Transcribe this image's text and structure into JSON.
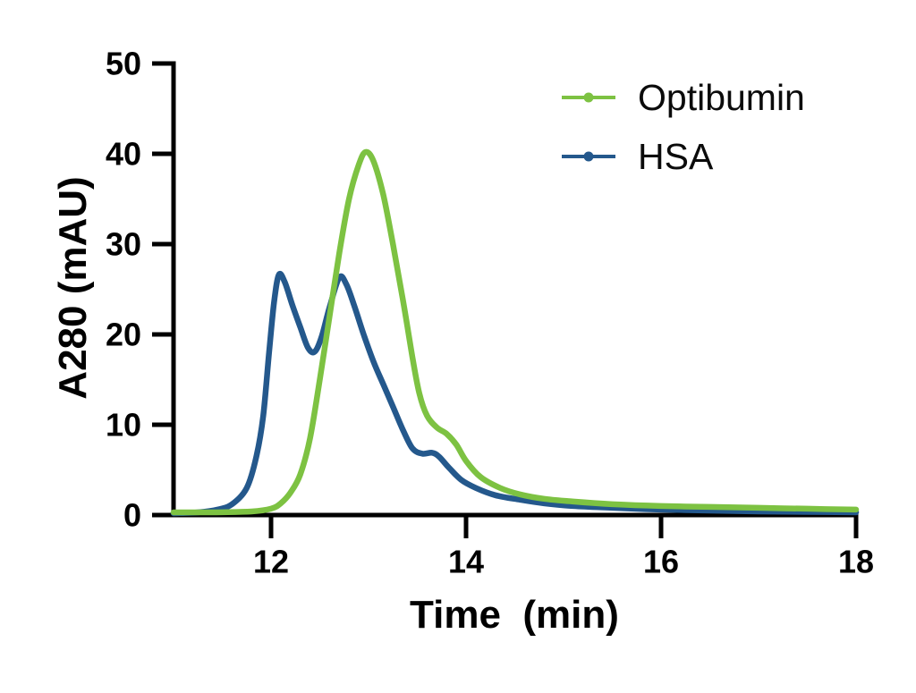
{
  "figure": {
    "background": "#ffffff"
  },
  "chart_data": {
    "type": "line",
    "title": "",
    "xlabel": "Time  (min)",
    "ylabel": "A280 (mAU)",
    "xlim": [
      11,
      18
    ],
    "ylim": [
      0,
      50
    ],
    "x_ticks": [
      12,
      14,
      16,
      18
    ],
    "y_ticks": [
      0,
      10,
      20,
      30,
      40,
      50
    ],
    "grid": false,
    "axis_color": "#000000",
    "legend_position": "top-right",
    "series": [
      {
        "name": "Optibumin",
        "color": "#7dc242",
        "marker": "dot",
        "peak_summary": "single main peak ~40.2 mAU at 12.97 min with shoulder ~9.5 mAU at 13.7 min",
        "points": [
          [
            11.0,
            0.3
          ],
          [
            11.4,
            0.3
          ],
          [
            11.8,
            0.4
          ],
          [
            12.0,
            0.7
          ],
          [
            12.1,
            1.3
          ],
          [
            12.2,
            2.5
          ],
          [
            12.3,
            4.5
          ],
          [
            12.4,
            8.5
          ],
          [
            12.5,
            15.0
          ],
          [
            12.6,
            22.0
          ],
          [
            12.7,
            29.0
          ],
          [
            12.8,
            35.0
          ],
          [
            12.9,
            38.8
          ],
          [
            12.97,
            40.2
          ],
          [
            13.05,
            39.2
          ],
          [
            13.15,
            35.5
          ],
          [
            13.25,
            30.0
          ],
          [
            13.35,
            24.0
          ],
          [
            13.45,
            17.5
          ],
          [
            13.52,
            13.5
          ],
          [
            13.6,
            11.0
          ],
          [
            13.7,
            9.7
          ],
          [
            13.8,
            9.0
          ],
          [
            13.9,
            7.8
          ],
          [
            14.0,
            6.0
          ],
          [
            14.15,
            4.2
          ],
          [
            14.35,
            3.0
          ],
          [
            14.55,
            2.3
          ],
          [
            14.8,
            1.8
          ],
          [
            15.1,
            1.5
          ],
          [
            15.5,
            1.2
          ],
          [
            16.0,
            1.0
          ],
          [
            16.5,
            0.9
          ],
          [
            17.0,
            0.8
          ],
          [
            17.5,
            0.7
          ],
          [
            18.0,
            0.6
          ]
        ]
      },
      {
        "name": "HSA",
        "color": "#24588c",
        "marker": "dot",
        "peak_summary": "double peak: 26.6 mAU at 12.08 min and 26.3 mAU at 12.70 min, valley ~18.1, small bump ~6.9 mAU at 13.6 min",
        "points": [
          [
            11.0,
            0.2
          ],
          [
            11.25,
            0.3
          ],
          [
            11.45,
            0.6
          ],
          [
            11.6,
            1.2
          ],
          [
            11.75,
            3.0
          ],
          [
            11.85,
            6.5
          ],
          [
            11.92,
            11.0
          ],
          [
            11.98,
            18.0
          ],
          [
            12.03,
            23.5
          ],
          [
            12.08,
            26.6
          ],
          [
            12.14,
            25.8
          ],
          [
            12.22,
            23.2
          ],
          [
            12.3,
            20.8
          ],
          [
            12.38,
            18.5
          ],
          [
            12.45,
            18.1
          ],
          [
            12.52,
            19.8
          ],
          [
            12.6,
            23.0
          ],
          [
            12.7,
            26.3
          ],
          [
            12.77,
            25.6
          ],
          [
            12.85,
            23.3
          ],
          [
            12.95,
            20.0
          ],
          [
            13.05,
            17.0
          ],
          [
            13.15,
            14.5
          ],
          [
            13.25,
            12.0
          ],
          [
            13.35,
            9.5
          ],
          [
            13.45,
            7.4
          ],
          [
            13.55,
            6.8
          ],
          [
            13.65,
            6.9
          ],
          [
            13.72,
            6.5
          ],
          [
            13.82,
            5.3
          ],
          [
            13.95,
            3.9
          ],
          [
            14.1,
            3.0
          ],
          [
            14.3,
            2.2
          ],
          [
            14.55,
            1.7
          ],
          [
            14.8,
            1.3
          ],
          [
            15.1,
            1.0
          ],
          [
            15.5,
            0.8
          ],
          [
            16.0,
            0.6
          ],
          [
            16.5,
            0.5
          ],
          [
            17.0,
            0.4
          ],
          [
            17.5,
            0.35
          ],
          [
            18.0,
            0.3
          ]
        ]
      }
    ]
  }
}
